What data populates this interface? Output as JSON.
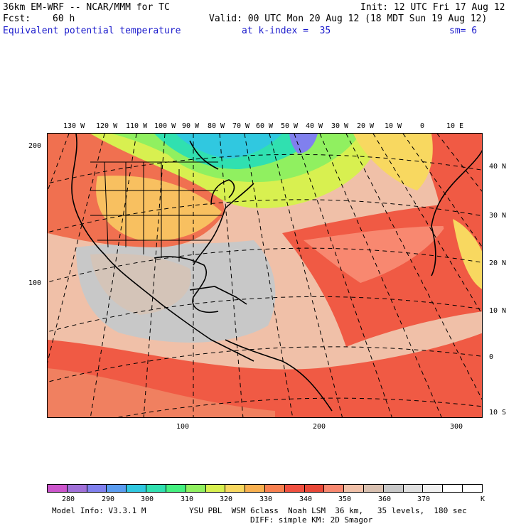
{
  "header": {
    "model": "36km EM-WRF -- NCAR/MMM for TC",
    "init": "Init: 12 UTC Fri 17 Aug 12",
    "fcst_label": "Fcst:",
    "fcst_value": "60 h",
    "valid": "Valid: 00 UTC Mon 20 Aug 12 (18 MDT Sun 19 Aug 12)",
    "field": "Equivalent potential temperature",
    "level": "at k-index =  35",
    "smoothing": "sm= 6"
  },
  "map": {
    "lon_labels": [
      "130 W",
      "120 W",
      "110 W",
      "100 W",
      "90 W",
      "80 W",
      "70 W",
      "60 W",
      "50 W",
      "40 W",
      "30 W",
      "20 W",
      "10 W",
      "0",
      "10 E"
    ],
    "lat_labels": [
      "40 N",
      "30 N",
      "20 N",
      "10 N",
      "0",
      "10 S"
    ],
    "left_axis": [
      "200",
      "100"
    ],
    "bottom_axis": [
      "100",
      "200",
      "300"
    ]
  },
  "colorbar": {
    "colors": [
      "#cc55cc",
      "#a070d8",
      "#8080ee",
      "#5a9cf0",
      "#30c8e0",
      "#30e0b0",
      "#44f080",
      "#90f060",
      "#d8f050",
      "#f8d860",
      "#f8b050",
      "#f88050",
      "#f05040",
      "#e84838",
      "#f88870",
      "#f0c0a8",
      "#d8c0b0",
      "#c8c8c8",
      "#e0e0e0",
      "#f0f0f0",
      "#ffffff",
      "#ffffff"
    ],
    "ticks": [
      "280",
      "290",
      "300",
      "310",
      "320",
      "330",
      "340",
      "350",
      "360",
      "370",
      "K"
    ]
  },
  "footer": {
    "line1a": "Model Info: V3.3.1 M",
    "line1b": "YSU PBL  WSM 6class  Noah LSM  36 km,   35 levels,  180 sec",
    "line2": "DIFF: simple KM: 2D Smagor"
  }
}
